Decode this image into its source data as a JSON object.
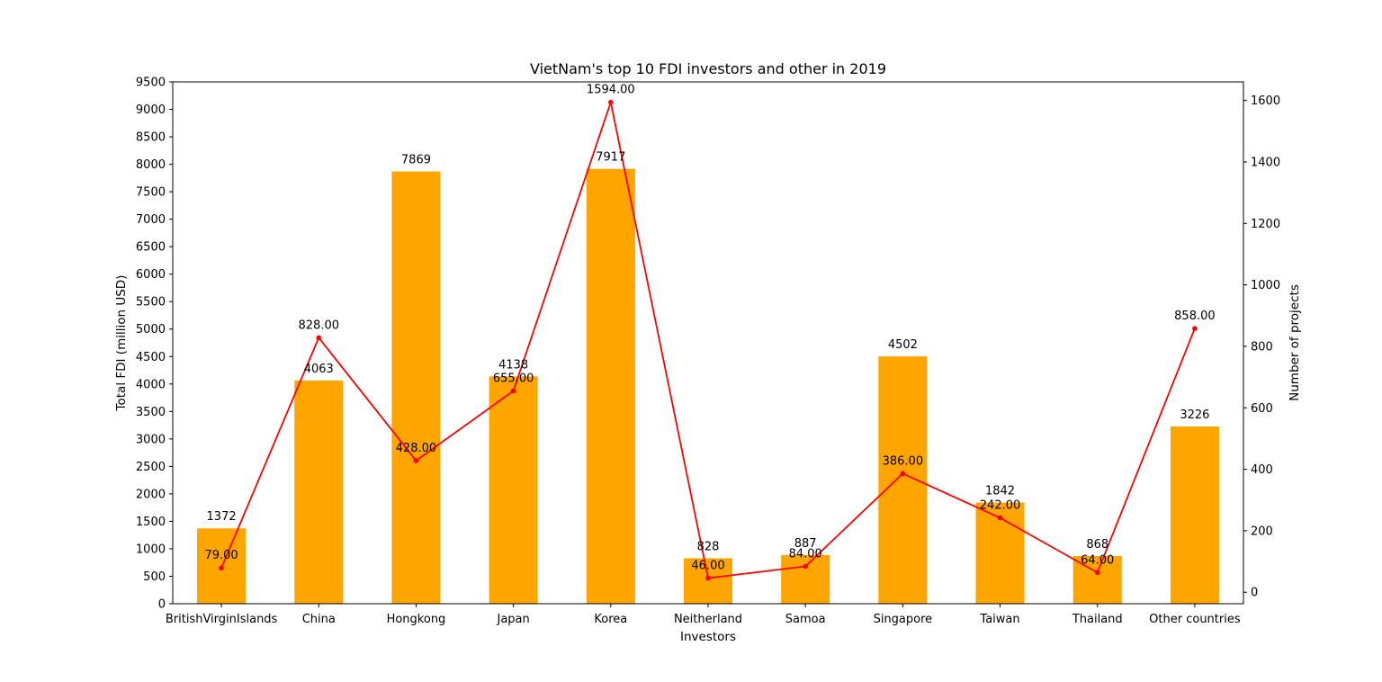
{
  "chart_data": {
    "type": "bar",
    "title": "VietNam's top 10 FDI investors and other in 2019",
    "xlabel": "Investors",
    "ylabel": "Total FDI (million USD)",
    "y2label": "Number of projects",
    "categories": [
      "BritishVirginIslands",
      "China",
      "Hongkong",
      "Japan",
      "Korea",
      "Neitherland",
      "Samoa",
      "Singapore",
      "Taiwan",
      "Thailand",
      "Other countries"
    ],
    "series": [
      {
        "type": "bar",
        "axis": "left",
        "color": "#ffa500",
        "values": [
          1372,
          4063,
          7869,
          4138,
          7917,
          828,
          887,
          4502,
          1842,
          868,
          3226
        ],
        "labels": [
          "1372",
          "4063",
          "7869",
          "4138",
          "7917",
          "828",
          "887",
          "4502",
          "1842",
          "868",
          "3226"
        ]
      },
      {
        "type": "line",
        "axis": "right",
        "color": "#ff0000",
        "marker": "circle",
        "values": [
          79,
          828,
          428,
          655,
          1594,
          46,
          84,
          386,
          242,
          64,
          858
        ],
        "labels": [
          "79.00",
          "828.00",
          "428.00",
          "655.00",
          "1594.00",
          "46.00",
          "84.00",
          "386.00",
          "242.00",
          "64.00",
          "858.00"
        ]
      }
    ],
    "ylim": [
      0,
      9500
    ],
    "yticks": [
      "0",
      "500",
      "1000",
      "1500",
      "2000",
      "2500",
      "3000",
      "3500",
      "4000",
      "4500",
      "5000",
      "5500",
      "6000",
      "6500",
      "7000",
      "7500",
      "8000",
      "8500",
      "9000",
      "9500"
    ],
    "y2lim": [
      -37.4,
      1660.4
    ],
    "y2ticks": [
      "0",
      "200",
      "400",
      "600",
      "800",
      "1000",
      "1200",
      "1400",
      "1600"
    ],
    "grid": false,
    "legend": "none"
  }
}
